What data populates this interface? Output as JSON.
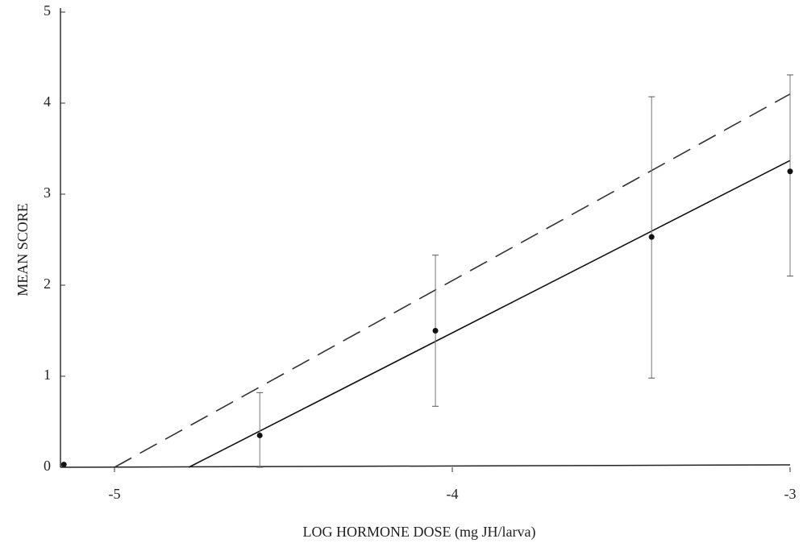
{
  "chart_data": {
    "type": "scatter",
    "xlabel": "LOG HORMONE DOSE (mg JH/larva)",
    "ylabel": "MEAN SCORE",
    "xlim": [
      -5.16,
      -3
    ],
    "ylim": [
      0,
      5
    ],
    "xticks": [
      -5,
      -4,
      -3
    ],
    "yticks": [
      0,
      1,
      2,
      3,
      4,
      5
    ],
    "x": [
      -5.15,
      -4.57,
      -4.05,
      -3.41,
      -3.0
    ],
    "values": [
      0.03,
      0.35,
      1.5,
      2.53,
      3.25
    ],
    "error_upper": [
      null,
      0.82,
      2.33,
      4.07,
      4.31
    ],
    "error_lower": [
      null,
      0.0,
      0.67,
      0.98,
      2.1
    ],
    "color": "#111",
    "series": [
      {
        "x": [
          -4.78,
          -3
        ],
        "values": [
          0,
          3.37
        ],
        "dash": "solid",
        "color": "#111"
      },
      {
        "x": [
          -5,
          -3
        ],
        "values": [
          0,
          4.1
        ],
        "dash": "dashed",
        "color": "#333"
      }
    ]
  }
}
